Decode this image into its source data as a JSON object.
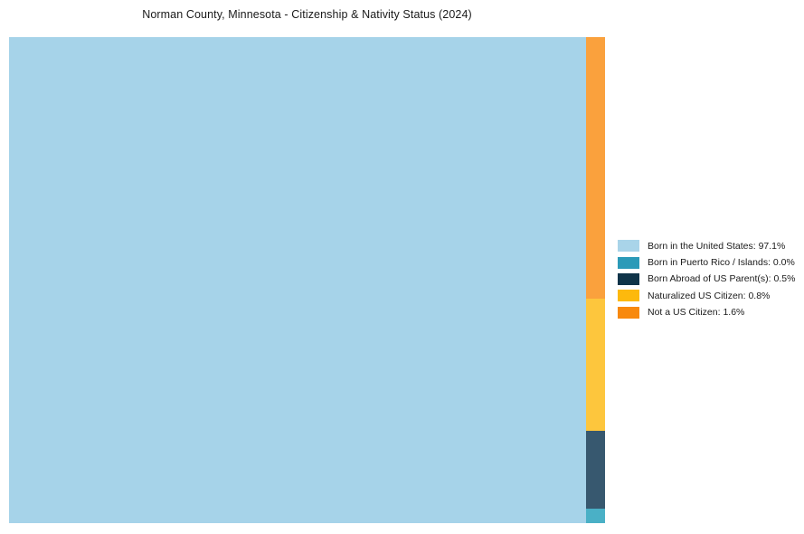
{
  "page": {
    "background_color": "#ffffff"
  },
  "chart_data": {
    "type": "treemap",
    "title": "Norman County, Minnesota - Citizenship & Nativity Status (2024)",
    "legend_position": "right",
    "grid": false,
    "axes": false,
    "categories": [
      "Born in the United States",
      "Born in Puerto Rico / Islands",
      "Born Abroad of US Parent(s)",
      "Naturalized US Citizen",
      "Not a US Citizen"
    ],
    "values": [
      97.1,
      0.0,
      0.5,
      0.8,
      1.6
    ],
    "segments": [
      {
        "id": "born-us",
        "label": "Born in the United States",
        "value_pct": 97.1,
        "legend_label": "Born in the United States: 97.1%",
        "swatch_color": "#a9d4e9",
        "fill_color": "#a6d3e9"
      },
      {
        "id": "puerto-rico",
        "label": "Born in Puerto Rico / Islands",
        "value_pct": 0.0,
        "legend_label": "Born in Puerto Rico / Islands: 0.0%",
        "swatch_color": "#2b9ab8",
        "fill_color": "#4ab0c6"
      },
      {
        "id": "born-abroad",
        "label": "Born Abroad of US Parent(s)",
        "value_pct": 0.5,
        "legend_label": "Born Abroad of US Parent(s): 0.5%",
        "swatch_color": "#0f3449",
        "fill_color": "#37586f"
      },
      {
        "id": "naturalized",
        "label": "Naturalized US Citizen",
        "value_pct": 0.8,
        "legend_label": "Naturalized US Citizen: 0.8%",
        "swatch_color": "#fdb90d",
        "fill_color": "#fdc63d"
      },
      {
        "id": "not-citizen",
        "label": "Not a US Citizen",
        "value_pct": 1.6,
        "legend_label": "Not a US Citizen: 1.6%",
        "swatch_color": "#f8890d",
        "fill_color": "#faa13d"
      }
    ],
    "layout": {
      "main_rect_segment_index": 0,
      "main_rect_width_frac": 0.968,
      "column_order_indices_top_to_bottom": [
        4,
        3,
        2,
        1
      ],
      "column_height_fracs_top_to_bottom": [
        0.5382,
        0.2719,
        0.1601,
        0.0298
      ]
    }
  }
}
